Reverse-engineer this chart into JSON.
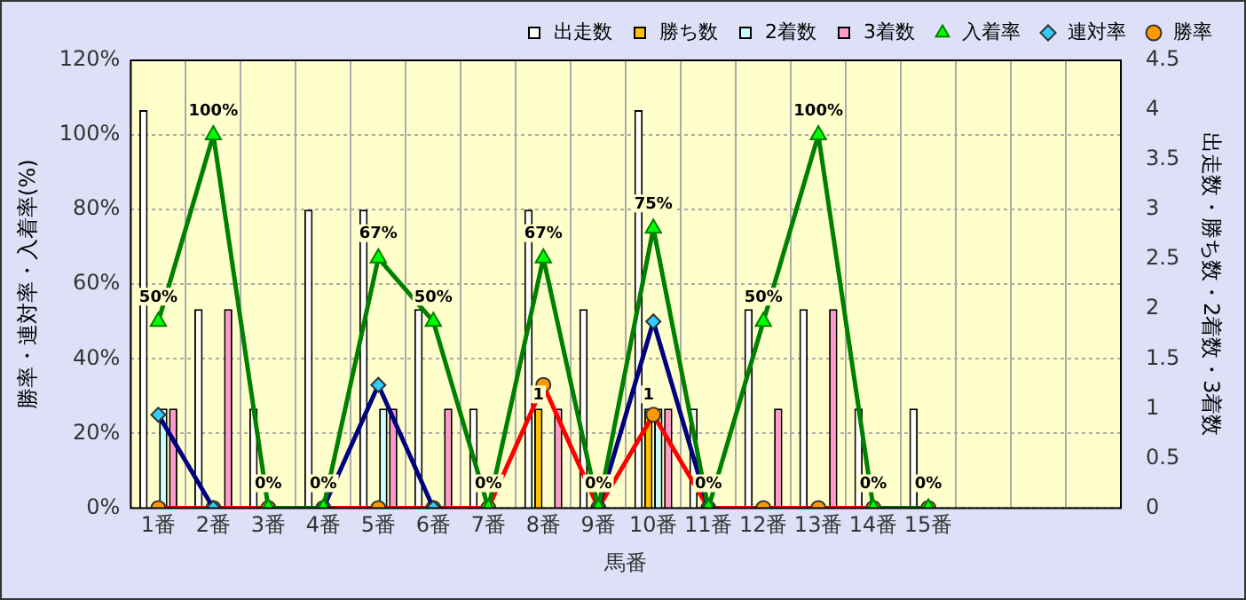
{
  "chart_data": {
    "type": "bar",
    "xlabel": "馬番",
    "ylabel": "勝率・連対率・入着率(%)",
    "y2label": "出走数・勝ち数・2着数・3着数",
    "categories": [
      "1番",
      "2番",
      "3番",
      "4番",
      "5番",
      "6番",
      "7番",
      "8番",
      "9番",
      "10番",
      "11番",
      "12番",
      "13番",
      "14番",
      "15番",
      null,
      null,
      null
    ],
    "series": [
      {
        "name": "出走数",
        "axis": "y2",
        "color": "#ffffff",
        "values": [
          4,
          2,
          1,
          3,
          3,
          2,
          1,
          3,
          2,
          4,
          1,
          2,
          2,
          1,
          1,
          null,
          null,
          null
        ]
      },
      {
        "name": "勝ち数",
        "axis": "y2",
        "color": "#ffc000",
        "values": [
          0,
          0,
          0,
          0,
          0,
          0,
          0,
          1,
          0,
          1,
          0,
          0,
          0,
          0,
          0,
          null,
          null,
          null
        ],
        "value_labels": [
          null,
          null,
          null,
          null,
          null,
          null,
          null,
          "1",
          null,
          "1",
          null,
          null,
          null,
          null,
          null,
          null,
          null,
          null
        ]
      },
      {
        "name": "2着数",
        "axis": "y2",
        "color": "#ccffff",
        "values": [
          1,
          0,
          0,
          0,
          1,
          0,
          0,
          0,
          0,
          1,
          0,
          0,
          0,
          0,
          0,
          null,
          null,
          null
        ]
      },
      {
        "name": "3着数",
        "axis": "y2",
        "color": "#ff99cc",
        "values": [
          1,
          2,
          0,
          0,
          1,
          1,
          0,
          1,
          0,
          1,
          0,
          1,
          2,
          0,
          0,
          null,
          null,
          null
        ]
      },
      {
        "name": "入着率",
        "type": "line",
        "axis": "y",
        "color": "#008000",
        "marker": "triangle",
        "values": [
          50,
          100,
          0,
          0,
          67,
          50,
          0,
          67,
          0,
          75,
          0,
          50,
          100,
          0,
          0,
          null,
          null,
          null
        ],
        "value_labels": [
          "50%",
          "100%",
          "0%",
          "0%",
          "67%",
          "50%",
          "0%",
          "67%",
          "0%",
          "75%",
          "0%",
          "50%",
          "100%",
          "0%",
          "0%",
          null,
          null,
          null
        ]
      },
      {
        "name": "連対率",
        "type": "line",
        "axis": "y",
        "color": "#000080",
        "marker": "diamond",
        "values": [
          25,
          0,
          null,
          0,
          33,
          0,
          null,
          null,
          0,
          50,
          0,
          null,
          null,
          null,
          null,
          null,
          null,
          null
        ]
      },
      {
        "name": "勝率",
        "type": "line",
        "axis": "y",
        "color": "#ff0000",
        "marker": "circle",
        "values": [
          0,
          0,
          0,
          0,
          0,
          0,
          0,
          33,
          0,
          25,
          0,
          0,
          0,
          0,
          0,
          null,
          null,
          null
        ]
      }
    ],
    "ylim": [
      0,
      120
    ],
    "yticks": [
      {
        "value": 0,
        "label": "0%"
      },
      {
        "value": 20,
        "label": "20%"
      },
      {
        "value": 40,
        "label": "40%"
      },
      {
        "value": 60,
        "label": "60%"
      },
      {
        "value": 80,
        "label": "80%"
      },
      {
        "value": 100,
        "label": "100%"
      },
      {
        "value": 120,
        "label": "120%"
      }
    ],
    "y2lim": [
      0,
      4.5
    ],
    "y2ticks": [
      0,
      0.5,
      1,
      1.5,
      2,
      2.5,
      3,
      3.5,
      4,
      4.5
    ],
    "grid": true,
    "legend": "top"
  }
}
